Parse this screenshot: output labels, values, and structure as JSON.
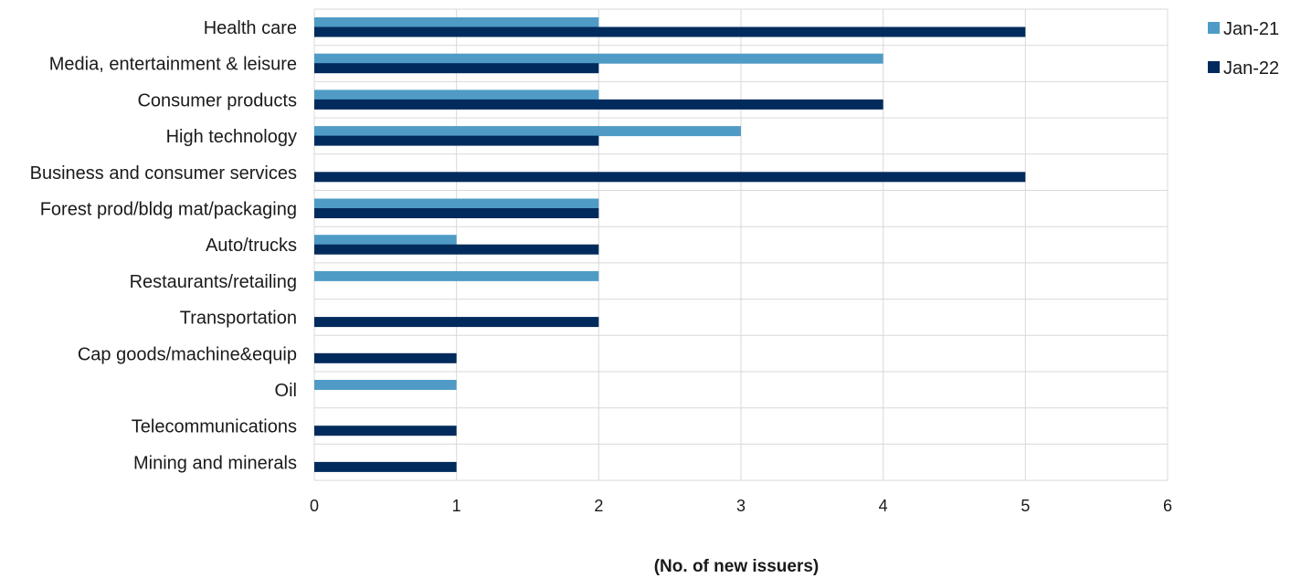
{
  "chart_data": {
    "type": "bar",
    "orientation": "horizontal",
    "categories": [
      "Health care",
      "Media, entertainment & leisure",
      "Consumer products",
      "High technology",
      "Business and consumer services",
      "Forest prod/bldg mat/packaging",
      "Auto/trucks",
      "Restaurants/retailing",
      "Transportation",
      "Cap goods/machine&equip",
      "Oil",
      "Telecommunications",
      "Mining and minerals"
    ],
    "series": [
      {
        "name": "Jan-21",
        "color": "#4f9bc6",
        "values": [
          2,
          4,
          2,
          3,
          0,
          2,
          1,
          2,
          0,
          0,
          1,
          0,
          0
        ]
      },
      {
        "name": "Jan-22",
        "color": "#002b5c",
        "values": [
          5,
          2,
          4,
          2,
          5,
          2,
          2,
          0,
          2,
          1,
          0,
          1,
          1
        ]
      }
    ],
    "xlabel": "(No. of new issuers)",
    "xlim": [
      0,
      6
    ],
    "xticks": [
      "0",
      "1",
      "2",
      "3",
      "4",
      "5",
      "6"
    ],
    "grid": true,
    "legend_position": "top-right"
  }
}
